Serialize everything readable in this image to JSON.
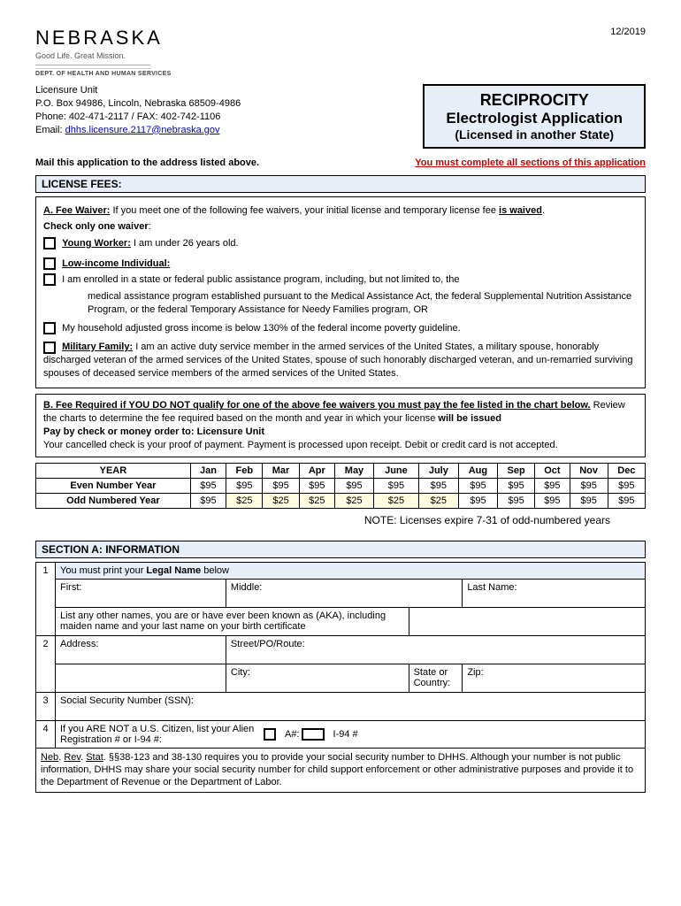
{
  "header": {
    "logo_title": "NEBRASKA",
    "logo_tagline": "Good Life. Great Mission.",
    "logo_dept": "DEPT. OF HEALTH AND HUMAN SERVICES",
    "date": "12/2019"
  },
  "address": {
    "unit": "Licensure Unit",
    "line1": "P.O. Box 94986, Lincoln, Nebraska 68509-4986",
    "line2": "Phone: 402-471-2117 / FAX:  402-742-1106",
    "email_label": "Email: ",
    "email": "dhhs.licensure.2117@nebraska.gov"
  },
  "title_box": {
    "t1": "RECIPROCITY",
    "t2": "Electrologist Application",
    "t3": "(Licensed in another State)"
  },
  "instructions": {
    "mail": "Mail this application to the address listed above.",
    "complete": "You must complete all sections of this application"
  },
  "sections": {
    "license_fees": "LICENSE FEES:",
    "section_a": "SECTION A:  INFORMATION"
  },
  "fee_waiver": {
    "heading": "A.  Fee Waiver:",
    "intro": "  If you meet one of the following fee waivers, your initial license and temporary license fee ",
    "is_waived": "is waived",
    "check_one": "Check only one waiver",
    "young_worker_label": "Young Worker:",
    "young_worker_text": "   I am under 26 years old.",
    "low_income_label": "Low-income Individual:",
    "low_income_1": "I am enrolled in a state or federal public assistance program, including, but not limited to, the",
    "low_income_2": "medical assistance program established pursuant to the Medical Assistance Act, the federal Supplemental Nutrition Assistance Program, or the federal Temporary Assistance for Needy Families program, OR",
    "low_income_3": "My household adjusted gross income is below 130% of the federal income poverty guideline.",
    "military_label": "Military Family:",
    "military_text": "  I am an active duty service member in the armed services of the United States, a military spouse, honorably discharged veteran of the armed services of the United States, spouse of such honorably discharged veteran, and un-remarried surviving spouses of deceased service members of the armed services of the United States."
  },
  "fee_required": {
    "heading": "B.  Fee Required if YOU DO NOT qualify for one of the above fee waivers you must pay the fee listed in the chart below.",
    "review": "  Review the charts to determine the fee required based on the month and year in which your license ",
    "will_be_issued": "will be issued",
    "pay_by": "Pay by check or money order to:  Licensure Unit",
    "cancelled": "Your cancelled check is your proof of payment.  Payment is processed upon receipt.  Debit or credit card is not accepted."
  },
  "fee_table": {
    "months": [
      "YEAR",
      "Jan",
      "Feb",
      "Mar",
      "Apr",
      "May",
      "June",
      "July",
      "Aug",
      "Sep",
      "Oct",
      "Nov",
      "Dec"
    ],
    "even_label": "Even Number Year",
    "odd_label": "Odd Numbered Year",
    "even": [
      "$95",
      "$95",
      "$95",
      "$95",
      "$95",
      "$95",
      "$95",
      "$95",
      "$95",
      "$95",
      "$95",
      "$95"
    ],
    "odd": [
      "$95",
      "$25",
      "$25",
      "$25",
      "$25",
      "$25",
      "$25",
      "$95",
      "$95",
      "$95",
      "$95",
      "$95"
    ],
    "highlight_cols": [
      1,
      2,
      3,
      4,
      5,
      6
    ]
  },
  "note": "NOTE:  Licenses expire 7-31 of odd-numbered years",
  "section_a_form": {
    "row1_intro": "You must print your ",
    "row1_legal": "Legal Name",
    "row1_below": " below",
    "first": "First:",
    "middle": "Middle:",
    "last": "Last Name:",
    "aka": "List any other names, you are or have ever been known as (AKA), including maiden name and your last name on your birth certificate",
    "address": "Address:",
    "street": "Street/PO/Route:",
    "city": "City:",
    "state": "State or Country:",
    "zip": "Zip:",
    "ssn": "Social Security Number (SSN):",
    "alien": "If you ARE NOT a U.S. Citizen, list your Alien Registration # or I-94 #:",
    "a_num": "A#:",
    "i94": "I-94 #",
    "legal_text": ". §§38-123 and 38-130 requires you to provide your social security number to DHHS.  Although your number is not public information, DHHS may share your social security number for child support enforcement or other administrative purposes and provide it to the Department of Revenue or the Department of Labor.",
    "legal_prefix": "Neb",
    "legal_rev": ". Rev",
    "legal_stat": ". Stat"
  }
}
